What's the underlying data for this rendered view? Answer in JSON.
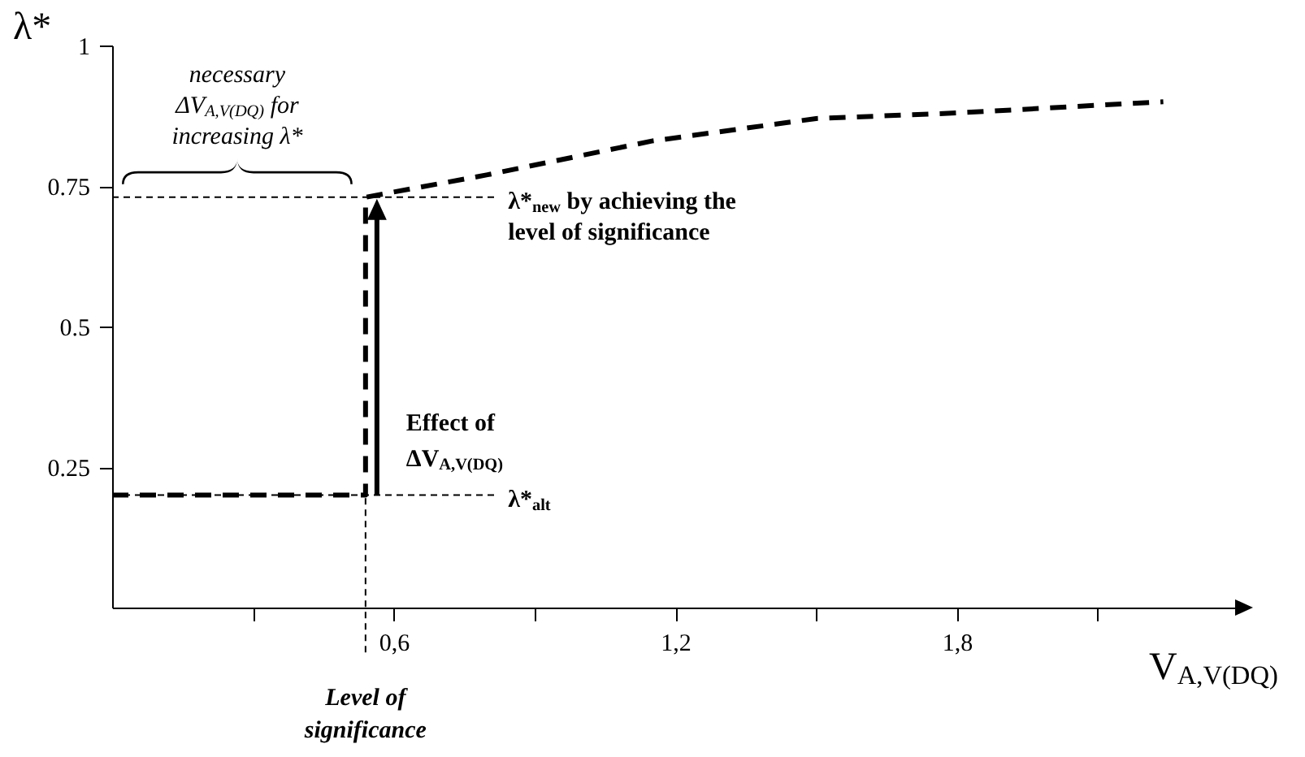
{
  "chart_data": {
    "type": "line",
    "xlabel": "V$_{A,V(DQ)}$",
    "ylabel": "λ*",
    "x": [
      0,
      0.54,
      0.54,
      0.8,
      1.15,
      1.5,
      1.8,
      2.24
    ],
    "series": [
      {
        "color": "#000000",
        "values": [
          0.2,
          0.2,
          0.73,
          0.77,
          0.83,
          0.87,
          0.88,
          0.9
        ]
      }
    ],
    "xlim": [
      0,
      2.4
    ],
    "ylim": [
      0,
      1
    ],
    "xticks": [
      {
        "value": 0.3,
        "label": null
      },
      {
        "value": 0.6,
        "label": "0,6"
      },
      {
        "value": 0.9,
        "label": null
      },
      {
        "value": 1.2,
        "label": "1,2"
      },
      {
        "value": 1.5,
        "label": null
      },
      {
        "value": 1.8,
        "label": "1,8"
      },
      {
        "value": 2.1,
        "label": null
      }
    ],
    "yticks": [
      0.25,
      0.5,
      0.75,
      1
    ],
    "line_style": "dashed",
    "ref_lines": [
      {
        "axis": "y",
        "value": 0.73,
        "label": "λ*$_{new}$ by achieving the level of significance",
        "line_style": "dashed"
      },
      {
        "axis": "y",
        "value": 0.2,
        "label": "λ*$_{alt}$",
        "line_style": "dashed"
      },
      {
        "axis": "x",
        "value": 0.54,
        "label": "Level of significance",
        "line_style": "dashed"
      }
    ],
    "annotations": [
      "necessary ΔV$_{A,V(DQ)}$ for increasing λ*",
      "Effect of ΔV$_{A,V(DQ)}$"
    ]
  }
}
